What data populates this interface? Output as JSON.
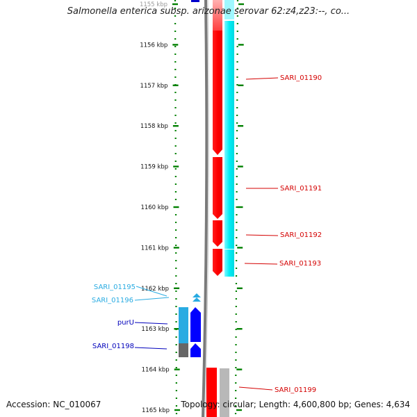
{
  "title": "Salmonella enterica subsp. arizonae serovar 62:z4,z23:--, co...",
  "accession_text": "Accession: NC_010067",
  "summary_text": "Topology: circular; Length: 4,600,800 bp; Genes: 4,634",
  "ruler": {
    "ticks": [
      {
        "kb": 1155,
        "label": "1155 kbp"
      },
      {
        "kb": 1156,
        "label": "1156 kbp"
      },
      {
        "kb": 1157,
        "label": "1157 kbp"
      },
      {
        "kb": 1158,
        "label": "1158 kbp"
      },
      {
        "kb": 1159,
        "label": "1159 kbp"
      },
      {
        "kb": 1160,
        "label": "1160 kbp"
      },
      {
        "kb": 1161,
        "label": "1161 kbp"
      },
      {
        "kb": 1162,
        "label": "1162 kbp"
      },
      {
        "kb": 1163,
        "label": "1163 kbp"
      },
      {
        "kb": 1164,
        "label": "1164 kbp"
      },
      {
        "kb": 1165,
        "label": "1165 kbp"
      }
    ]
  },
  "gene_labels": [
    {
      "name": "SARI_01190",
      "color": "#d40000",
      "side": "right"
    },
    {
      "name": "SARI_01191",
      "color": "#d40000",
      "side": "right"
    },
    {
      "name": "SARI_01192",
      "color": "#d40000",
      "side": "right"
    },
    {
      "name": "SARI_01193",
      "color": "#d40000",
      "side": "right"
    },
    {
      "name": "SARI_01195",
      "color": "#29abe2",
      "side": "left"
    },
    {
      "name": "SARI_01196",
      "color": "#29abe2",
      "side": "left"
    },
    {
      "name": "purU",
      "color": "#0000bb",
      "side": "left"
    },
    {
      "name": "SARI_01198",
      "color": "#0000bb",
      "side": "left"
    },
    {
      "name": "SARI_01199",
      "color": "#d40000",
      "side": "right"
    }
  ],
  "colors": {
    "forward_cds": "#ff0000",
    "forward_gene": "#00e5ee",
    "reverse_cds": "#0000ff",
    "reverse_gene": "#29abe2",
    "backbone": "#808080",
    "ruler": "#008000",
    "pseudo": "#bbbbbb"
  }
}
